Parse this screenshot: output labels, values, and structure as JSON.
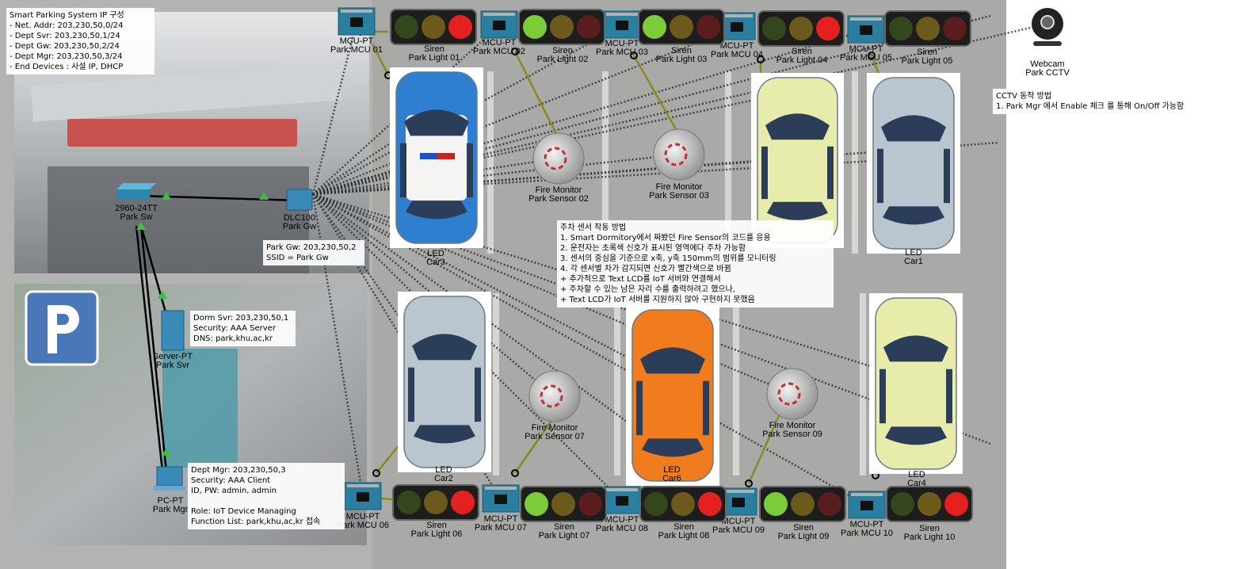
{
  "notes": [
    {
      "lines": [
        "Smart Parking System IP 구성",
        "- Net. Addr: 203,230,50,0/24",
        "- Dept Svr: 203,230,50,1/24",
        "- Dept Gw: 203,230,50,2/24",
        "- Dept Mgr: 203,230,50,3/24",
        "- End Devices : 사설 IP, DHCP"
      ]
    },
    {
      "lines": [
        "Park Gw: 203,230,50,2",
        "SSID = Park Gw"
      ]
    },
    {
      "lines": [
        "Dorm Svr: 203,230,50,1",
        "Security: AAA Server",
        "DNS: park,khu,ac,kr"
      ]
    },
    {
      "lines": [
        "Dept Mgr: 203,230,50,3",
        "Security: AAA Client",
        "ID, PW: admin, admin",
        "Role: IoT Device Managing",
        "Function List: park,khu,ac,kr 접속"
      ]
    },
    {
      "lines": [
        "주차 센서 작동 방법",
        "1. Smart Dormitory에서 짜봤던 Fire Sensor의 코드를 응용",
        "2. 운전자는 초록색 신호가 표시된 영역에다 주차 가능함",
        "3. 센서의 중심을 기준으로 x축, y축 150mm의 범위를 모니터링",
        "4. 각 센서별 차가 감지되면 신호가 빨간색으로 바뀜",
        "+ 추가적으로 Text LCD를 IoT 서버와 연결해서",
        "+ 주차할 수 있는 남은 자리 수를 출력하려고 했으나,",
        "+ Text LCD가 IoT 서버를 지원하지 않아 구현하지 못했음"
      ]
    },
    {
      "lines": [
        "CCTV 동작 방법",
        "1. Park Mgr 에서 Enable 체크 를 통해 On/Off 가능함"
      ]
    }
  ],
  "devices": [
    {
      "type": "2960-24TT",
      "name": "Park Sw"
    },
    {
      "type": "DLC100",
      "name": "Park Gw"
    },
    {
      "type": "Server-PT",
      "name": "Park Svr"
    },
    {
      "type": "PC-PT",
      "name": "Park Mgr"
    },
    {
      "type": "Webcam",
      "name": "Park CCTV"
    },
    {
      "type": "MCU-PT",
      "name": "Park MCU 01"
    },
    {
      "type": "MCU-PT",
      "name": "Park MCU 02"
    },
    {
      "type": "MCU-PT",
      "name": "Park MCU 03"
    },
    {
      "type": "MCU-PT",
      "name": "Park MCU 04"
    },
    {
      "type": "MCU-PT",
      "name": "Park MCU 05"
    },
    {
      "type": "MCU-PT",
      "name": "Park MCU 06"
    },
    {
      "type": "MCU-PT",
      "name": "Park MCU 07"
    },
    {
      "type": "MCU-PT",
      "name": "Park MCU 08"
    },
    {
      "type": "MCU-PT",
      "name": "Park MCU 09"
    },
    {
      "type": "MCU-PT",
      "name": "Park MCU 10"
    },
    {
      "type": "Siren",
      "name": "Park Light 01"
    },
    {
      "type": "Siren",
      "name": "Park Light 02"
    },
    {
      "type": "Siren",
      "name": "Park Light 03"
    },
    {
      "type": "Siren",
      "name": "Park Light 04"
    },
    {
      "type": "Siren",
      "name": "Park Light 05"
    },
    {
      "type": "Siren",
      "name": "Park Light 06"
    },
    {
      "type": "Siren",
      "name": "Park Light 07"
    },
    {
      "type": "Siren",
      "name": "Park Light 08"
    },
    {
      "type": "Siren",
      "name": "Park Light 09"
    },
    {
      "type": "Siren",
      "name": "Park Light 10"
    },
    {
      "type": "Fire Monitor",
      "name": "Park Sensor 02"
    },
    {
      "type": "Fire Monitor",
      "name": "Park Sensor 03"
    },
    {
      "type": "Fire Monitor",
      "name": "Park Sensor 07"
    },
    {
      "type": "Fire Monitor",
      "name": "Park Sensor 09"
    },
    {
      "type": "LED",
      "name": "Car3"
    },
    {
      "type": "LED",
      "name": "Car1"
    },
    {
      "type": "LED",
      "name": "Car2"
    },
    {
      "type": "LED",
      "name": "Car6"
    },
    {
      "type": "LED",
      "name": "Car4"
    }
  ]
}
